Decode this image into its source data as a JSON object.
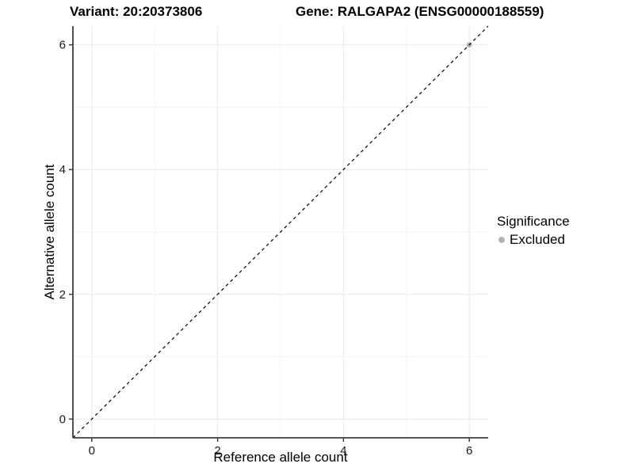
{
  "titles": {
    "left": "Variant: 20:20373806",
    "right": "Gene: RALGAPA2 (ENSG00000188559)"
  },
  "legend": {
    "title": "Significance",
    "entries": [
      {
        "label": "Excluded",
        "color": "#b3b3b3"
      }
    ]
  },
  "colors": {
    "axis_line": "#3d3d3d",
    "tick_mark": "#3d3d3d",
    "tick_text": "#1a1a1a",
    "grid_major": "#e9e9e9",
    "grid_minor": "#f4f4f4",
    "background": "#ffffff"
  },
  "chart_data": {
    "type": "scatter",
    "title": "Variant: 20:20373806 — Gene: RALGAPA2 (ENSG00000188559)",
    "xlabel": "Reference allele count",
    "ylabel": "Alternative allele count",
    "xlim": [
      -0.3,
      6.3
    ],
    "ylim": [
      -0.3,
      6.3
    ],
    "x_ticks": [
      0,
      2,
      4,
      6
    ],
    "y_ticks": [
      0,
      2,
      4,
      6
    ],
    "minor_ticks": [
      1,
      3,
      5
    ],
    "grid": "on",
    "legend_position": "right",
    "series": [
      {
        "name": "Excluded",
        "color": "#b3b3b3",
        "points": [
          [
            6,
            6
          ]
        ]
      }
    ],
    "reference_line": {
      "kind": "identity",
      "slope": 1,
      "intercept": 0,
      "style": "dashed",
      "color": "#000000"
    }
  }
}
